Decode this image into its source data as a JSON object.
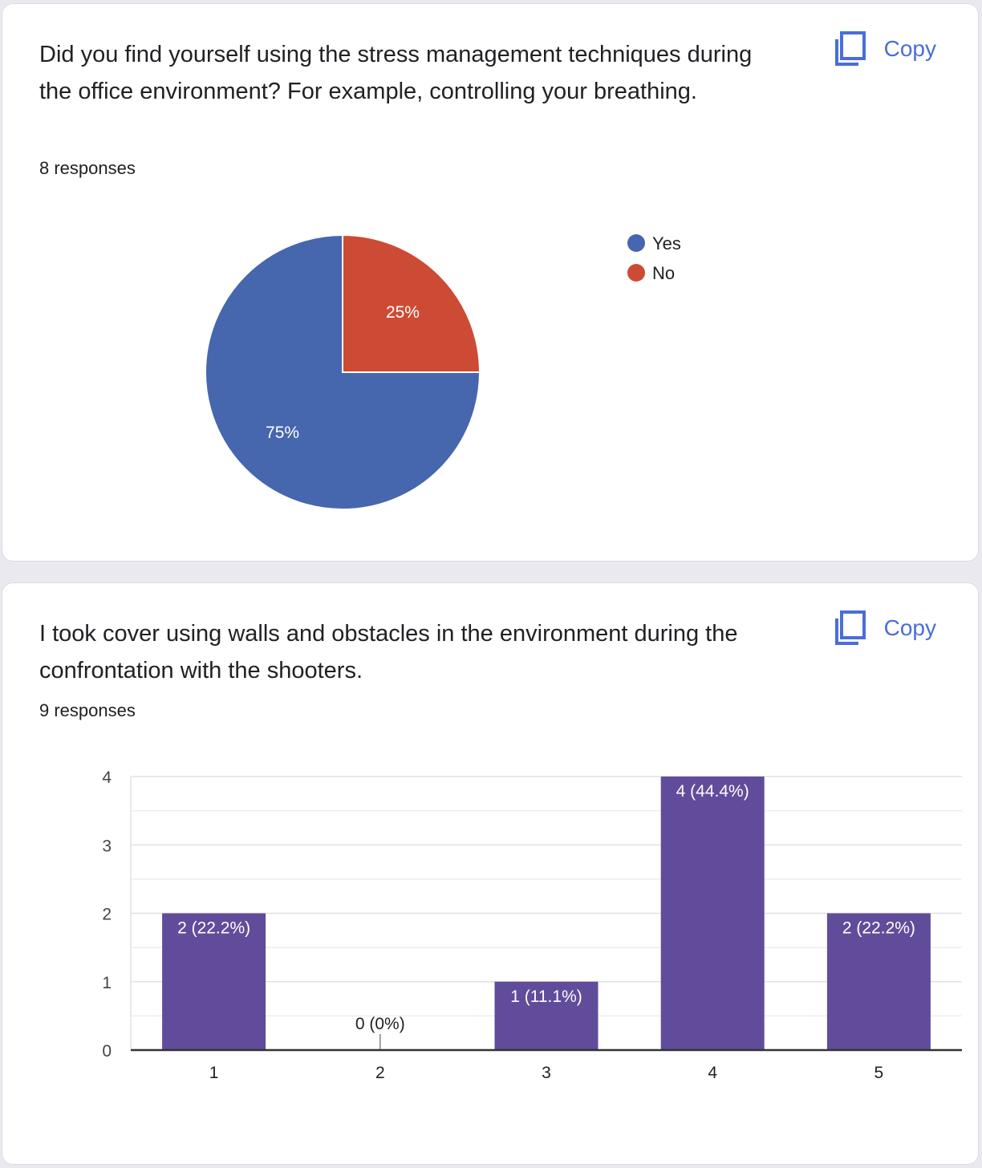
{
  "cards": [
    {
      "question": "Did you find yourself using the stress management techniques during the office environment? For example, controlling your breathing.",
      "responses": "8 responses",
      "copy_label": "Copy"
    },
    {
      "question": "I took cover using walls and obstacles in the environment during the confrontation with the shooters.",
      "responses": "9 responses",
      "copy_label": "Copy"
    }
  ],
  "icons": {
    "copy": "copy-icon"
  },
  "chart_data": [
    {
      "type": "pie",
      "slices": [
        {
          "label": "Yes",
          "value": 75,
          "display": "75%",
          "color": "#4666ae"
        },
        {
          "label": "No",
          "value": 25,
          "display": "25%",
          "color": "#cd4b34"
        }
      ],
      "legend": "right"
    },
    {
      "type": "bar",
      "categories": [
        "1",
        "2",
        "3",
        "4",
        "5"
      ],
      "values": [
        2,
        0,
        1,
        4,
        2
      ],
      "labels": [
        "2 (22.2%)",
        "0 (0%)",
        "1 (11.1%)",
        "4 (44.4%)",
        "2 (22.2%)"
      ],
      "yticks": [
        "0",
        "1",
        "2",
        "3",
        "4"
      ],
      "ylim": [
        0,
        4
      ],
      "color": "#614c9b",
      "grid": true
    }
  ]
}
